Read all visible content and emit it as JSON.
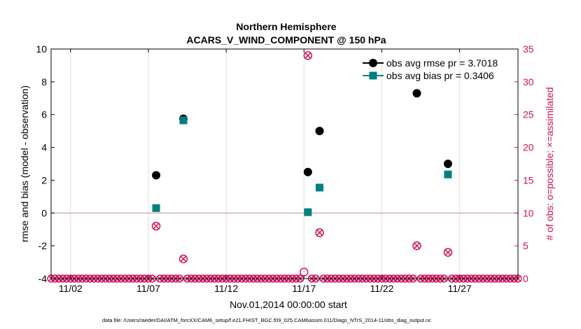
{
  "chart_data": {
    "type": "scatter",
    "title_line1": "Northern Hemisphere",
    "title_line2": "ACARS_V_WIND_COMPONENT @ 150 hPa",
    "xlabel": "Nov.01,2014 00:00:00 start",
    "ylabel": "rmse and bias (model - observation)",
    "ylabel_right": "# of obs: o=possible; ×=assimilated",
    "xlim": [
      0.75,
      30.75
    ],
    "ylim": [
      -4,
      10
    ],
    "ylim_right": [
      0,
      35
    ],
    "x_ticks": [
      {
        "x": 2,
        "label": "11/02"
      },
      {
        "x": 7,
        "label": "11/07"
      },
      {
        "x": 12,
        "label": "11/12"
      },
      {
        "x": 17,
        "label": "11/17"
      },
      {
        "x": 22,
        "label": "11/22"
      },
      {
        "x": 27,
        "label": "11/27"
      }
    ],
    "y_ticks": [
      -4,
      -2,
      0,
      2,
      4,
      6,
      8,
      10
    ],
    "y_ticks_right": [
      0,
      5,
      10,
      15,
      20,
      25,
      30,
      35
    ],
    "zero_line": 0,
    "legend": [
      {
        "label": "obs avg rmse pr = 3.7018",
        "color": "#000000",
        "marker": "circle"
      },
      {
        "label": "obs avg bias pr = 0.3406",
        "color": "#008080",
        "marker": "square"
      }
    ],
    "series": [
      {
        "name": "rmse",
        "color": "#000000",
        "marker": "circle",
        "x": [
          7.5,
          9.25,
          17.25,
          18,
          24.25,
          26.25
        ],
        "y": [
          2.3,
          5.75,
          2.5,
          5.0,
          7.3,
          3.0
        ]
      },
      {
        "name": "bias",
        "color": "#008080",
        "marker": "square",
        "x": [
          7.5,
          9.25,
          17.25,
          18,
          26.25
        ],
        "y": [
          0.3,
          5.65,
          0.05,
          1.55,
          2.35
        ]
      }
    ],
    "obs_possible": {
      "color": "#d0105c",
      "x": [
        7.5,
        9.25,
        17,
        17.25,
        18,
        24.25,
        26.25
      ],
      "y": [
        8,
        3,
        1,
        34,
        7,
        5,
        4
      ]
    },
    "obs_assimilated": {
      "color": "#d0105c",
      "x": [
        7.5,
        9.25,
        17.25,
        18,
        24.25,
        26.25
      ],
      "y": [
        8,
        3,
        34,
        7,
        5,
        4
      ]
    },
    "zero_obs_range": {
      "start": 0.75,
      "end": 30.75,
      "step": 0.25,
      "color": "#d0105c"
    }
  },
  "footer": "data file: /Users/raeder/DAI/ATM_forcXX/CAM6_setup/f.e21.FHIST_BGC.f09_025.CAM6assim.011/Diags_NTrS_2014-11/obs_diag_output.nc"
}
